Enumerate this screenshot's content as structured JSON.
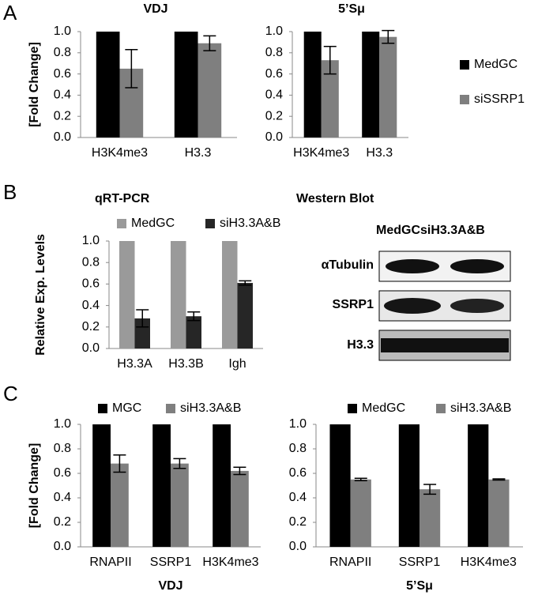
{
  "panels": [
    "A",
    "B",
    "C"
  ],
  "western_blot": {
    "title": "Western Blot",
    "columns": [
      "MedGC",
      "siH3.3A&B"
    ],
    "rows": [
      "αTubulin",
      "SSRP1",
      "H3.3"
    ]
  },
  "chart_data": [
    {
      "type": "bar",
      "title": "VDJ",
      "y_label": "[Fold Change]",
      "categories": [
        "H3K4me3",
        "H3.3"
      ],
      "series": [
        {
          "color": "#000000",
          "values": [
            1.0,
            1.0
          ]
        },
        {
          "color": "#7f7f7f",
          "values": [
            0.65,
            0.89
          ],
          "errors": [
            0.18,
            0.07
          ]
        }
      ],
      "ylim": [
        0,
        1
      ],
      "yticks": [
        {
          "value": 0,
          "label": "0.0"
        },
        {
          "value": 0.2,
          "label": "0.2"
        },
        {
          "value": 0.4,
          "label": "0.4"
        },
        {
          "value": 0.6,
          "label": "0.6"
        },
        {
          "value": 0.8,
          "label": "0.8"
        },
        {
          "value": 1,
          "label": "1.0"
        }
      ],
      "grid": false
    },
    {
      "type": "bar",
      "title": "5’Sμ",
      "categories": [
        "H3K4me3",
        "H3.3"
      ],
      "series": [
        {
          "name": "MedGC",
          "color": "#000000",
          "values": [
            1.0,
            1.0
          ]
        },
        {
          "name": "siSSRP1",
          "color": "#7f7f7f",
          "values": [
            0.73,
            0.95
          ],
          "errors": [
            0.13,
            0.06
          ]
        }
      ],
      "ylim": [
        0,
        1
      ],
      "yticks": [
        {
          "value": 0,
          "label": "0.0"
        },
        {
          "value": 0.2,
          "label": "0.2"
        },
        {
          "value": 0.4,
          "label": "0.4"
        },
        {
          "value": 0.6,
          "label": "0.6"
        },
        {
          "value": 0.8,
          "label": "0.8"
        },
        {
          "value": 1,
          "label": "1.0"
        }
      ],
      "grid": false,
      "legend": "right"
    },
    {
      "type": "bar",
      "title": "qRT-PCR",
      "y_label": "Relative Exp. Levels",
      "categories": [
        "H3.3A",
        "H3.3B",
        "Igh"
      ],
      "series": [
        {
          "name": "MedGC",
          "color": "#9a9a9a",
          "values": [
            1.0,
            1.0,
            1.0
          ]
        },
        {
          "name": "siH3.3A&B",
          "color": "#262626",
          "values": [
            0.28,
            0.3,
            0.61
          ],
          "errors": [
            0.08,
            0.04,
            0.02
          ]
        }
      ],
      "ylim": [
        0,
        1
      ],
      "yticks": [
        {
          "value": 0,
          "label": "0.0"
        },
        {
          "value": 0.2,
          "label": "0.2"
        },
        {
          "value": 0.4,
          "label": "0.4"
        },
        {
          "value": 0.6,
          "label": "0.6"
        },
        {
          "value": 0.8,
          "label": "0.8"
        },
        {
          "value": 1,
          "label": "1.0"
        }
      ],
      "grid": false,
      "legend": "top"
    },
    {
      "type": "bar",
      "x_label": "VDJ",
      "y_label": "[Fold Change]",
      "categories": [
        "RNAPII",
        "SSRP1",
        "H3K4me3"
      ],
      "series": [
        {
          "name": "MGC",
          "color": "#000000",
          "values": [
            1.0,
            1.0,
            1.0
          ]
        },
        {
          "name": "siH3.3A&B",
          "color": "#7f7f7f",
          "values": [
            0.68,
            0.68,
            0.62
          ],
          "errors": [
            0.07,
            0.04,
            0.03
          ]
        }
      ],
      "ylim": [
        0,
        1
      ],
      "yticks": [
        {
          "value": 0,
          "label": "0.0"
        },
        {
          "value": 0.2,
          "label": "0.2"
        },
        {
          "value": 0.4,
          "label": "0.4"
        },
        {
          "value": 0.6,
          "label": "0.6"
        },
        {
          "value": 0.8,
          "label": "0.8"
        },
        {
          "value": 1,
          "label": "1.0"
        }
      ],
      "grid": false,
      "legend": "top"
    },
    {
      "type": "bar",
      "x_label": "5’Sμ",
      "categories": [
        "RNAPII",
        "SSRP1",
        "H3K4me3"
      ],
      "series": [
        {
          "name": "MedGC",
          "color": "#000000",
          "values": [
            1.0,
            1.0,
            1.0
          ]
        },
        {
          "name": "siH3.3A&B",
          "color": "#7f7f7f",
          "values": [
            0.55,
            0.47,
            0.55
          ],
          "errors": [
            0.01,
            0.04,
            0.005
          ]
        }
      ],
      "ylim": [
        0,
        1
      ],
      "yticks": [
        {
          "value": 0,
          "label": "0.0"
        },
        {
          "value": 0.2,
          "label": "0.2"
        },
        {
          "value": 0.4,
          "label": "0.4"
        },
        {
          "value": 0.6,
          "label": "0.6"
        },
        {
          "value": 0.8,
          "label": "0.8"
        },
        {
          "value": 1,
          "label": "1.0"
        }
      ],
      "grid": false,
      "legend": "top"
    }
  ]
}
